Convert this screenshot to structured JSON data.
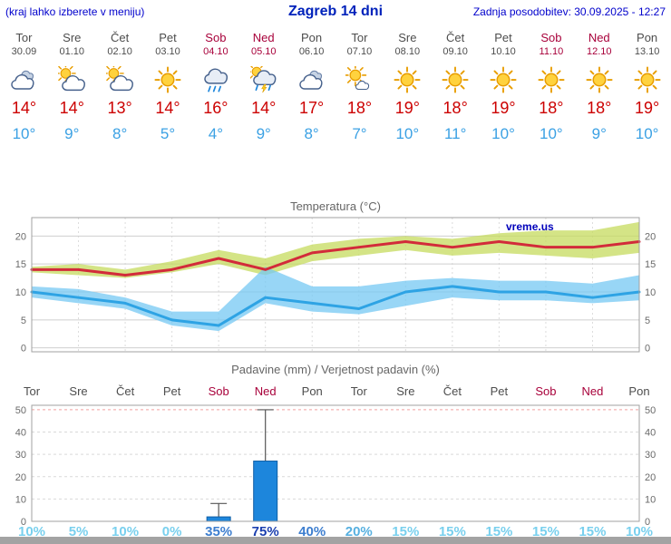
{
  "header": {
    "menu_hint": "(kraj lahko izberete v meniju)",
    "title": "Zagreb 14 dni",
    "last_update": "Zadnja posodobitev: 30.09.2025 - 12:27"
  },
  "colors": {
    "weekday_text": "#4d4d4d",
    "weekend_text": "#a8003a",
    "temp_high": "#cc0000",
    "temp_low": "#3ba1e4",
    "bar_fill": "#1d86dc",
    "bar_border": "#0e5ea6",
    "high_line": "#d22b3a",
    "low_line": "#2ea3e4",
    "high_band": "rgba(197,219,94,0.75)",
    "low_band": "rgba(118,200,243,0.75)"
  },
  "days": [
    {
      "name": "Tor",
      "date": "30.09",
      "weekend": false,
      "icon": "cloudy",
      "high": 14,
      "low": 10,
      "precip_label": "10%",
      "precip_pct": 10
    },
    {
      "name": "Sre",
      "date": "01.10",
      "weekend": false,
      "icon": "partly-cloudy",
      "high": 14,
      "low": 9,
      "precip_label": "5%",
      "precip_pct": 5
    },
    {
      "name": "Čet",
      "date": "02.10",
      "weekend": false,
      "icon": "partly-cloudy",
      "high": 13,
      "low": 8,
      "precip_label": "10%",
      "precip_pct": 10
    },
    {
      "name": "Pet",
      "date": "03.10",
      "weekend": false,
      "icon": "sunny",
      "high": 14,
      "low": 5,
      "precip_label": "0%",
      "precip_pct": 0
    },
    {
      "name": "Sob",
      "date": "04.10",
      "weekend": true,
      "icon": "rain",
      "high": 16,
      "low": 4,
      "precip_label": "35%",
      "precip_pct": 35
    },
    {
      "name": "Ned",
      "date": "05.10",
      "weekend": true,
      "icon": "rain-sun",
      "high": 14,
      "low": 9,
      "precip_label": "75%",
      "precip_pct": 75
    },
    {
      "name": "Pon",
      "date": "06.10",
      "weekend": false,
      "icon": "cloudy",
      "high": 17,
      "low": 8,
      "precip_label": "40%",
      "precip_pct": 40
    },
    {
      "name": "Tor",
      "date": "07.10",
      "weekend": false,
      "icon": "mostly-sunny",
      "high": 18,
      "low": 7,
      "precip_label": "20%",
      "precip_pct": 20
    },
    {
      "name": "Sre",
      "date": "08.10",
      "weekend": false,
      "icon": "sunny",
      "high": 19,
      "low": 10,
      "precip_label": "15%",
      "precip_pct": 15
    },
    {
      "name": "Čet",
      "date": "09.10",
      "weekend": false,
      "icon": "sunny",
      "high": 18,
      "low": 11,
      "precip_label": "15%",
      "precip_pct": 15
    },
    {
      "name": "Pet",
      "date": "10.10",
      "weekend": false,
      "icon": "sunny",
      "high": 19,
      "low": 10,
      "precip_label": "15%",
      "precip_pct": 15
    },
    {
      "name": "Sob",
      "date": "11.10",
      "weekend": true,
      "icon": "sunny",
      "high": 18,
      "low": 10,
      "precip_label": "15%",
      "precip_pct": 15
    },
    {
      "name": "Ned",
      "date": "12.10",
      "weekend": true,
      "icon": "sunny",
      "high": 18,
      "low": 9,
      "precip_label": "15%",
      "precip_pct": 15
    },
    {
      "name": "Pon",
      "date": "13.10",
      "weekend": false,
      "icon": "sunny",
      "high": 19,
      "low": 10,
      "precip_label": "10%",
      "precip_pct": 10
    }
  ],
  "chart_data": [
    {
      "type": "line",
      "title": "Temperatura (°C)",
      "watermark": "vreme.us",
      "y_ticks": [
        0,
        5,
        10,
        15,
        20
      ],
      "y_min": -0.7,
      "y_max": 23.3,
      "grid": true,
      "series": [
        {
          "id": "high",
          "values": [
            14,
            14,
            13,
            14,
            16,
            14,
            17,
            18,
            19,
            18,
            19,
            18,
            18,
            19
          ]
        },
        {
          "id": "low",
          "values": [
            10,
            9,
            8,
            5,
            4,
            9,
            8,
            7,
            10,
            11,
            10,
            10,
            9,
            10
          ]
        }
      ],
      "bands": [
        {
          "id": "high-range",
          "upper": [
            14.5,
            15,
            14,
            15.5,
            17.5,
            16,
            18.5,
            19.5,
            20,
            19.5,
            20.5,
            21,
            21,
            22.5
          ],
          "lower": [
            13.5,
            13,
            12.5,
            13.5,
            15,
            13,
            15.5,
            16.5,
            17.5,
            16.5,
            17,
            16.5,
            16,
            17
          ]
        },
        {
          "id": "low-range",
          "upper": [
            11,
            10.5,
            9,
            6.5,
            6.5,
            14.5,
            11,
            11,
            12,
            12.5,
            12,
            12,
            11.5,
            13
          ],
          "lower": [
            9,
            8,
            7,
            4,
            3,
            8,
            6.5,
            6,
            7.5,
            9,
            8.5,
            8.5,
            8,
            8.5
          ]
        }
      ]
    },
    {
      "type": "bar",
      "title": "Padavine (mm) / Verjetnost padavin (%)",
      "y_ticks": [
        0,
        10,
        20,
        30,
        40,
        50
      ],
      "y_max": 52,
      "values": [
        0,
        0,
        0,
        0,
        2,
        27,
        0,
        0,
        0,
        0,
        0,
        0,
        0,
        0
      ],
      "whisker_max": [
        0,
        0,
        0,
        0,
        8,
        50,
        0,
        0,
        0,
        0,
        0,
        0,
        0,
        0
      ],
      "probabilities_pct": [
        10,
        5,
        10,
        0,
        35,
        75,
        40,
        20,
        15,
        15,
        15,
        15,
        15,
        10
      ]
    }
  ]
}
